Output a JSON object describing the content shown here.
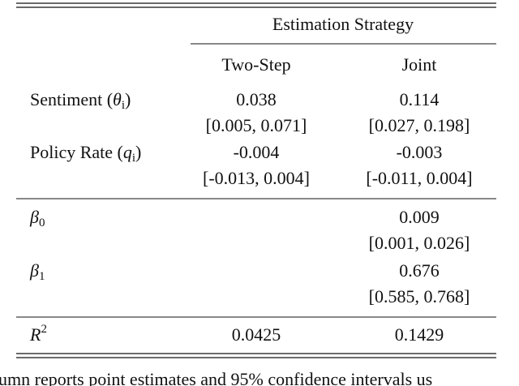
{
  "header": {
    "group": "Estimation Strategy",
    "columns": [
      "Two-Step",
      "Joint"
    ]
  },
  "rows": [
    {
      "label": [
        {
          "t": "Sentiment ("
        },
        {
          "t": "θ",
          "style": "italic"
        },
        {
          "t": "i",
          "style": "sub"
        },
        {
          "t": ")"
        }
      ],
      "values": [
        "0.038",
        "0.114"
      ],
      "intervals": [
        "[0.005, 0.071]",
        "[0.027, 0.198]"
      ]
    },
    {
      "label": [
        {
          "t": "Policy Rate ("
        },
        {
          "t": "q",
          "style": "italic"
        },
        {
          "t": "i",
          "style": "sub"
        },
        {
          "t": ")"
        }
      ],
      "values": [
        "-0.004",
        "-0.003"
      ],
      "intervals": [
        "[-0.013, 0.004]",
        "[-0.011, 0.004]"
      ]
    },
    {
      "label": [
        {
          "t": "β",
          "style": "italic"
        },
        {
          "t": "0",
          "style": "sub"
        }
      ],
      "values": [
        null,
        "0.009"
      ],
      "intervals": [
        null,
        "[0.001, 0.026]"
      ]
    },
    {
      "label": [
        {
          "t": "β",
          "style": "italic"
        },
        {
          "t": "1",
          "style": "sub"
        }
      ],
      "values": [
        null,
        "0.676"
      ],
      "intervals": [
        null,
        "[0.585, 0.768]"
      ]
    },
    {
      "label": [
        {
          "t": "R",
          "style": "italic"
        },
        {
          "t": "2",
          "style": "sup"
        }
      ],
      "values": [
        "0.0425",
        "0.1429"
      ]
    }
  ],
  "caption": "umn reports point estimates and 95% confidence intervals us"
}
